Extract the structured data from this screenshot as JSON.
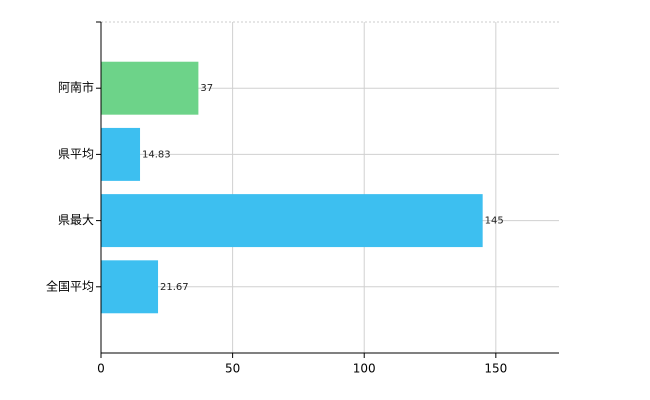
{
  "chart_data": {
    "type": "bar",
    "orientation": "horizontal",
    "categories": [
      "阿南市",
      "県平均",
      "県最大",
      "全国平均"
    ],
    "values": [
      37,
      14.83,
      145,
      21.67
    ],
    "colors": [
      "#6dd389",
      "#3dbff0",
      "#3dbff0",
      "#3dbff0"
    ],
    "xlim": [
      0,
      174
    ],
    "xticks": [
      0,
      50,
      100,
      150
    ],
    "grid": true
  }
}
